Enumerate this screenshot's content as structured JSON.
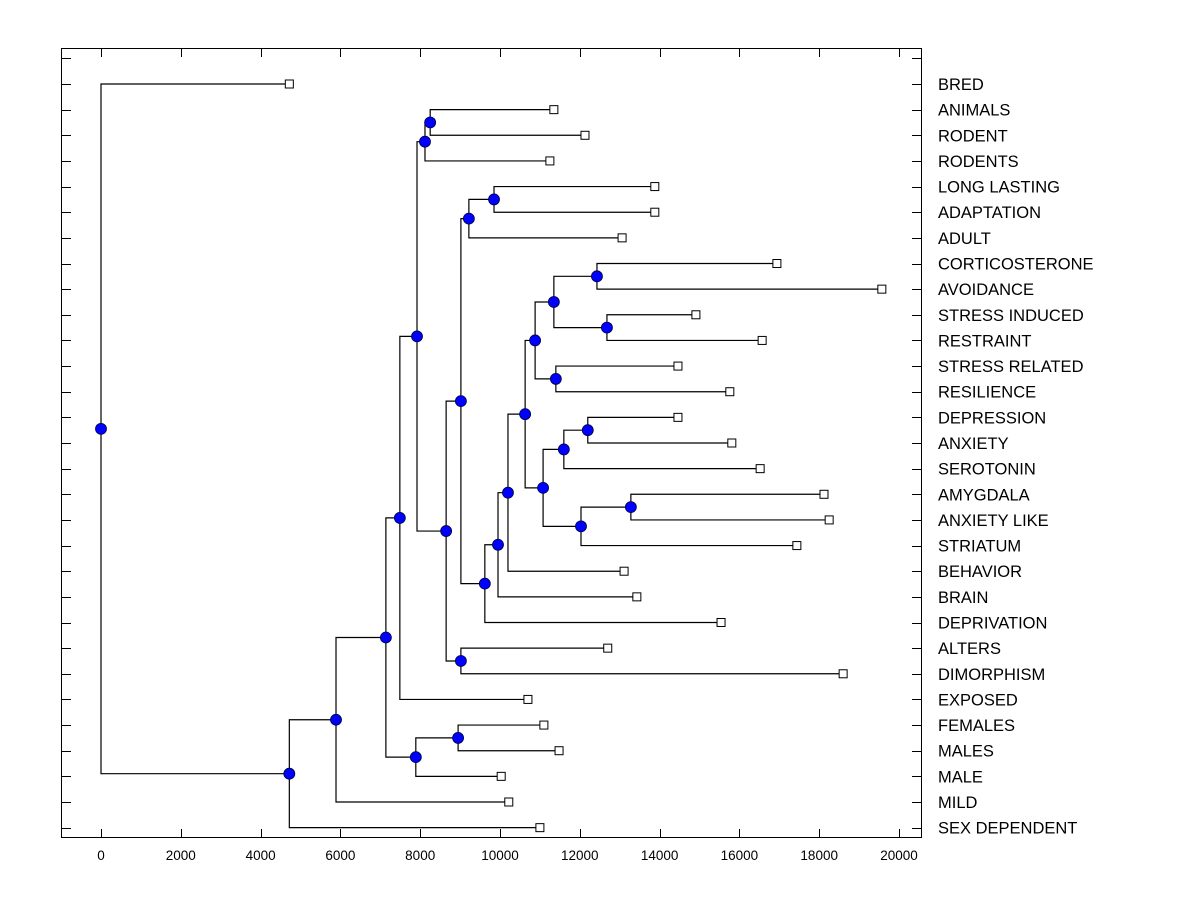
{
  "chart_data": {
    "type": "dendrogram",
    "title": "",
    "xlabel": "",
    "ylabel": "",
    "xlim": [
      -1000,
      20500
    ],
    "x_ticks": [
      0,
      2000,
      4000,
      6000,
      8000,
      10000,
      12000,
      14000,
      16000,
      18000,
      20000
    ],
    "x_tick_labels": [
      "0",
      "2000",
      "4000",
      "6000",
      "8000",
      "10000",
      "12000",
      "14000",
      "16000",
      "18000",
      "20000"
    ],
    "grid": false,
    "leaf_marker": "open-square",
    "node_marker": "filled-circle",
    "node_color": "#0000ff",
    "leaves": [
      {
        "label": "BRED",
        "value": 4720
      },
      {
        "label": "ANIMALS",
        "value": 11350
      },
      {
        "label": "RODENT",
        "value": 12130
      },
      {
        "label": "RODENTS",
        "value": 11250
      },
      {
        "label": "LONG LASTING",
        "value": 13880
      },
      {
        "label": "ADAPTATION",
        "value": 13880
      },
      {
        "label": "ADULT",
        "value": 13060
      },
      {
        "label": "CORTICOSTERONE",
        "value": 16940
      },
      {
        "label": "AVOIDANCE",
        "value": 19570
      },
      {
        "label": "STRESS INDUCED",
        "value": 14910
      },
      {
        "label": "RESTRAINT",
        "value": 16570
      },
      {
        "label": "STRESS RELATED",
        "value": 14460
      },
      {
        "label": "RESILIENCE",
        "value": 15760
      },
      {
        "label": "DEPRESSION",
        "value": 14460
      },
      {
        "label": "ANXIETY",
        "value": 15810
      },
      {
        "label": "SEROTONIN",
        "value": 16520
      },
      {
        "label": "AMYGDALA",
        "value": 18120
      },
      {
        "label": "ANXIETY LIKE",
        "value": 18250
      },
      {
        "label": "STRIATUM",
        "value": 17440
      },
      {
        "label": "BEHAVIOR",
        "value": 13110
      },
      {
        "label": "BRAIN",
        "value": 13430
      },
      {
        "label": "DEPRIVATION",
        "value": 15540
      },
      {
        "label": "ALTERS",
        "value": 12700
      },
      {
        "label": "DIMORPHISM",
        "value": 18600
      },
      {
        "label": "EXPOSED",
        "value": 10700
      },
      {
        "label": "FEMALES",
        "value": 11100
      },
      {
        "label": "MALES",
        "value": 11480
      },
      {
        "label": "MALE",
        "value": 10030
      },
      {
        "label": "MILD",
        "value": 10220
      },
      {
        "label": "SEX DEPENDENT",
        "value": 11000
      }
    ],
    "tree": {
      "value": 0,
      "children": [
        {
          "leaf": 0
        },
        {
          "value": 4720,
          "children": [
            {
              "value": 5890,
              "children": [
                {
                  "value": 7140,
                  "children": [
                    {
                      "value": 7490,
                      "children": [
                        {
                          "value": 7920,
                          "children": [
                            {
                              "value": 8120,
                              "children": [
                                {
                                  "value": 8250,
                                  "children": [
                                    {
                                      "leaf": 1
                                    },
                                    {
                                      "leaf": 2
                                    }
                                  ]
                                },
                                {
                                  "leaf": 3
                                }
                              ]
                            },
                            {
                              "value": 8650,
                              "children": [
                                {
                                  "value": 9020,
                                  "children": [
                                    {
                                      "value": 9220,
                                      "children": [
                                        {
                                          "value": 9850,
                                          "children": [
                                            {
                                              "leaf": 4
                                            },
                                            {
                                              "leaf": 5
                                            }
                                          ]
                                        },
                                        {
                                          "leaf": 6
                                        }
                                      ]
                                    },
                                    {
                                      "value": 9620,
                                      "children": [
                                        {
                                          "value": 9950,
                                          "children": [
                                            {
                                              "value": 10200,
                                              "children": [
                                                {
                                                  "value": 10630,
                                                  "children": [
                                                    {
                                                      "value": 10880,
                                                      "children": [
                                                        {
                                                          "value": 11350,
                                                          "children": [
                                                            {
                                                              "value": 12430,
                                                              "children": [
                                                                {
                                                                  "leaf": 7
                                                                },
                                                                {
                                                                  "leaf": 8
                                                                }
                                                              ]
                                                            },
                                                            {
                                                              "value": 12680,
                                                              "children": [
                                                                {
                                                                  "leaf": 9
                                                                },
                                                                {
                                                                  "leaf": 10
                                                                }
                                                              ]
                                                            }
                                                          ]
                                                        },
                                                        {
                                                          "value": 11400,
                                                          "children": [
                                                            {
                                                              "leaf": 11
                                                            },
                                                            {
                                                              "leaf": 12
                                                            }
                                                          ]
                                                        }
                                                      ]
                                                    },
                                                    {
                                                      "value": 11080,
                                                      "children": [
                                                        {
                                                          "value": 11600,
                                                          "children": [
                                                            {
                                                              "value": 12200,
                                                              "children": [
                                                                {
                                                                  "leaf": 13
                                                                },
                                                                {
                                                                  "leaf": 14
                                                                }
                                                              ]
                                                            },
                                                            {
                                                              "leaf": 15
                                                            }
                                                          ]
                                                        },
                                                        {
                                                          "value": 12030,
                                                          "children": [
                                                            {
                                                              "value": 13280,
                                                              "children": [
                                                                {
                                                                  "leaf": 16
                                                                },
                                                                {
                                                                  "leaf": 17
                                                                }
                                                              ]
                                                            },
                                                            {
                                                              "leaf": 18
                                                            }
                                                          ]
                                                        }
                                                      ]
                                                    }
                                                  ]
                                                },
                                                {
                                                  "leaf": 19
                                                }
                                              ]
                                            },
                                            {
                                              "leaf": 20
                                            }
                                          ]
                                        },
                                        {
                                          "leaf": 21
                                        }
                                      ]
                                    }
                                  ]
                                },
                                {
                                  "value": 9020,
                                  "children": [
                                    {
                                      "leaf": 22
                                    },
                                    {
                                      "leaf": 23
                                    }
                                  ]
                                }
                              ]
                            }
                          ]
                        },
                        {
                          "leaf": 24
                        }
                      ]
                    },
                    {
                      "value": 7890,
                      "children": [
                        {
                          "value": 8950,
                          "children": [
                            {
                              "leaf": 25
                            },
                            {
                              "leaf": 26
                            }
                          ]
                        },
                        {
                          "leaf": 27
                        }
                      ]
                    }
                  ]
                },
                {
                  "leaf": 28
                }
              ]
            },
            {
              "leaf": 29
            }
          ]
        }
      ]
    }
  }
}
